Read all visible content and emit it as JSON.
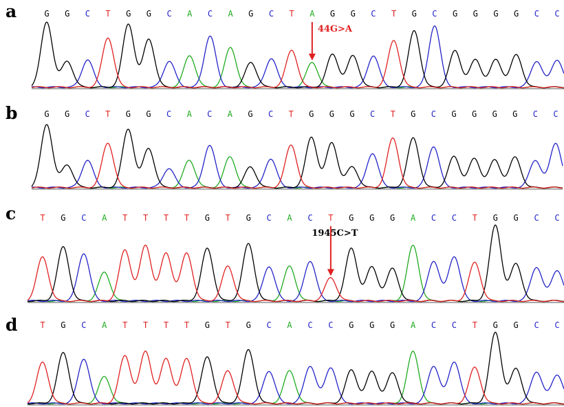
{
  "colors": {
    "A": "#1faa1f",
    "C": "#2323c8",
    "G": "#000000",
    "T": "#e02020",
    "annotation": "#e02020"
  },
  "panels": [
    {
      "letter": "a",
      "sequence": "GGCTGGCACAGCTAGGCTGCGGGGCC",
      "peak_heights": [
        0.95,
        0.38,
        0.4,
        0.72,
        0.92,
        0.7,
        0.38,
        0.46,
        0.75,
        0.58,
        0.36,
        0.42,
        0.54,
        0.36,
        0.48,
        0.46,
        0.46,
        0.68,
        0.82,
        0.9,
        0.53,
        0.4,
        0.4,
        0.47,
        0.38,
        0.4
      ],
      "annotation": {
        "label": "44G>A",
        "index": 13
      }
    },
    {
      "letter": "b",
      "sequence": "GGCTGGCACAGCTGGGCTGCGGGGCC",
      "peak_heights": [
        0.92,
        0.33,
        0.4,
        0.65,
        0.85,
        0.57,
        0.28,
        0.4,
        0.62,
        0.45,
        0.3,
        0.42,
        0.62,
        0.73,
        0.65,
        0.3,
        0.5,
        0.72,
        0.72,
        0.6,
        0.45,
        0.42,
        0.4,
        0.44,
        0.4,
        0.65
      ],
      "annotation": null
    },
    {
      "letter": "c",
      "sequence": "TGCATTTTGTGCACTGGGACCTGGCC",
      "peak_heights": [
        0.57,
        0.7,
        0.62,
        0.37,
        0.66,
        0.72,
        0.62,
        0.62,
        0.68,
        0.45,
        0.74,
        0.45,
        0.45,
        0.52,
        0.3,
        0.68,
        0.44,
        0.42,
        0.72,
        0.52,
        0.58,
        0.5,
        0.98,
        0.48,
        0.44,
        0.4
      ],
      "annotation": {
        "label": "1945C>T",
        "index": 14
      }
    },
    {
      "letter": "d",
      "sequence": "TGCATTTTGTGCACCGGGACCTGGCC",
      "peak_heights": [
        0.57,
        0.7,
        0.62,
        0.37,
        0.66,
        0.72,
        0.62,
        0.62,
        0.64,
        0.45,
        0.74,
        0.45,
        0.45,
        0.52,
        0.5,
        0.46,
        0.44,
        0.42,
        0.72,
        0.52,
        0.58,
        0.5,
        0.98,
        0.48,
        0.44,
        0.4
      ],
      "annotation": null
    }
  ]
}
